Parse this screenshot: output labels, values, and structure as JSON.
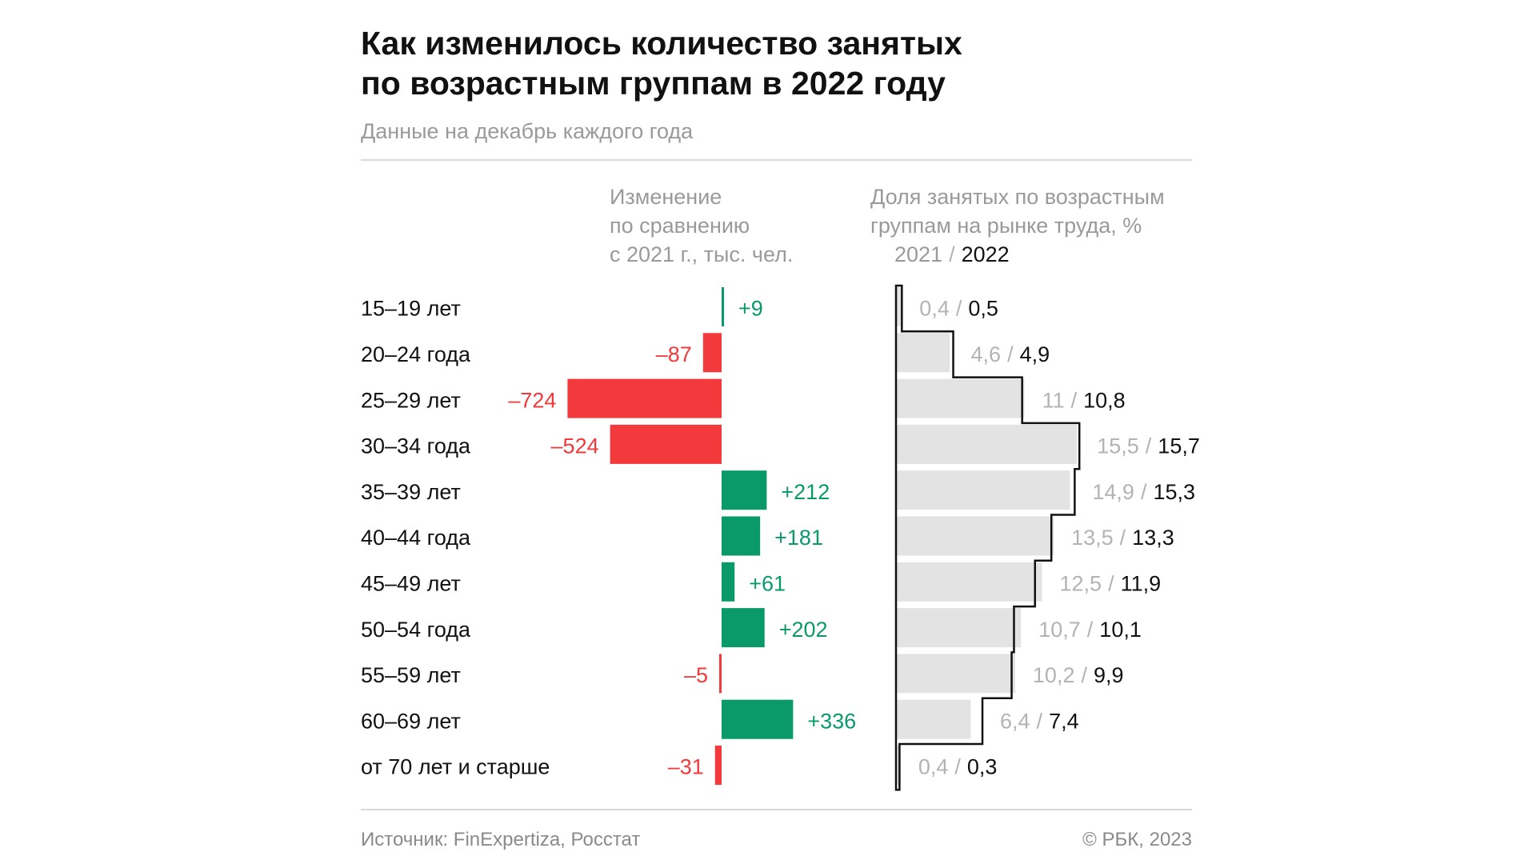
{
  "title_lines": [
    "Как изменилось количество занятых",
    "по возрастным группам в 2022 году"
  ],
  "subtitle": "Данные на декабрь каждого года",
  "change_header": [
    "Изменение",
    "по сравнению",
    "с 2021 г., тыс. чел."
  ],
  "share_header": [
    "Доля занятых по возрастным",
    "группам на рынке труда, %"
  ],
  "share_years": {
    "y2021": "2021",
    "sep": "/",
    "y2022": "2022"
  },
  "colors": {
    "positive": "#0a9a6a",
    "negative": "#f2393b",
    "bar_2021": "#e3e3e3",
    "line_2022": "#111111",
    "muted": "#9a9a9a"
  },
  "chart_data": {
    "type": "bar",
    "categories": [
      "15–19 лет",
      "20–24 года",
      "25–29 лет",
      "30–34 года",
      "35–39 лет",
      "40–44 года",
      "45–49 лет",
      "50–54 года",
      "55–59 лет",
      "60–69 лет",
      "от 70 лет и старше"
    ],
    "series": [
      {
        "name": "Изменение по сравнению с 2021 г., тыс. чел.",
        "values": [
          9,
          -87,
          -724,
          -524,
          212,
          181,
          61,
          202,
          -5,
          336,
          -31
        ],
        "labels": [
          "+9",
          "–87",
          "–724",
          "–524",
          "+212",
          "+181",
          "+61",
          "+202",
          "–5",
          "+336",
          "–31"
        ]
      },
      {
        "name": "2021",
        "values": [
          0.4,
          4.6,
          11,
          15.5,
          14.9,
          13.5,
          12.5,
          10.7,
          10.2,
          6.4,
          0.4
        ],
        "labels": [
          "0,4",
          "4,6",
          "11",
          "15,5",
          "14,9",
          "13,5",
          "12,5",
          "10,7",
          "10,2",
          "6,4",
          "0,4"
        ]
      },
      {
        "name": "2022",
        "values": [
          0.5,
          4.9,
          10.8,
          15.7,
          15.3,
          13.3,
          11.9,
          10.1,
          9.9,
          7.4,
          0.3
        ],
        "labels": [
          "0,5",
          "4,9",
          "10,8",
          "15,7",
          "15,3",
          "13,3",
          "11,9",
          "10,1",
          "9,9",
          "7,4",
          "0,3"
        ]
      }
    ],
    "title": "Как изменилось количество занятых по возрастным группам в 2022 году",
    "xlabel": "",
    "ylabel": ""
  },
  "footer": {
    "source": "Источник: FinExpertiza, Росстат",
    "copyright": "© РБК, 2023"
  }
}
